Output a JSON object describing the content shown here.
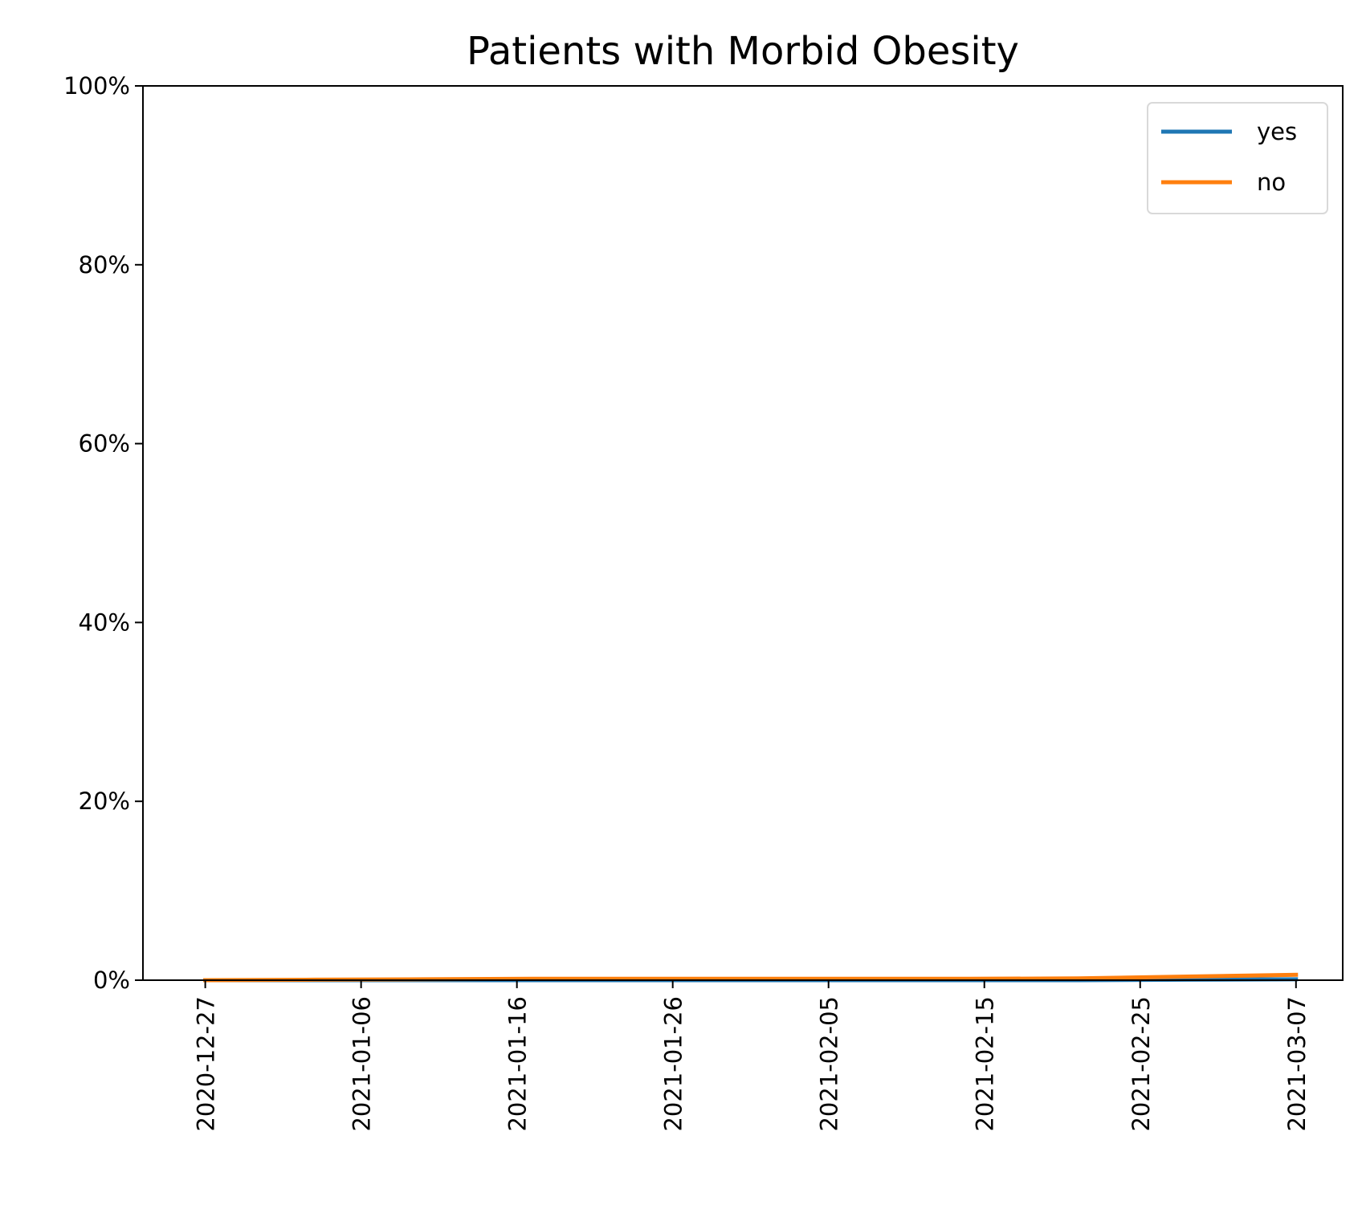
{
  "chart_data": {
    "type": "line",
    "title": "Patients with Morbid Obesity",
    "xlabel": "",
    "ylabel": "",
    "ylim": [
      0,
      100
    ],
    "x_ticks": [
      "2020-12-27",
      "2021-01-06",
      "2021-01-16",
      "2021-01-26",
      "2021-02-05",
      "2021-02-15",
      "2021-02-25",
      "2021-03-07"
    ],
    "y_ticks": [
      "0%",
      "20%",
      "40%",
      "60%",
      "80%",
      "100%"
    ],
    "y_tick_values": [
      0,
      20,
      40,
      60,
      80,
      100
    ],
    "x_range": [
      "2020-12-23",
      "2021-03-10"
    ],
    "grid": false,
    "legend_position": "top-right",
    "series": [
      {
        "name": "yes",
        "color": "#1f77b4",
        "points": [
          {
            "x": "2020-12-27",
            "y": 0.0
          },
          {
            "x": "2021-01-03",
            "y": 0.0
          },
          {
            "x": "2021-01-10",
            "y": 0.0
          },
          {
            "x": "2021-01-17",
            "y": 0.0
          },
          {
            "x": "2021-01-24",
            "y": 0.0
          },
          {
            "x": "2021-01-31",
            "y": 0.0
          },
          {
            "x": "2021-02-07",
            "y": 0.0
          },
          {
            "x": "2021-02-14",
            "y": 0.0
          },
          {
            "x": "2021-02-21",
            "y": 0.0
          },
          {
            "x": "2021-02-28",
            "y": 0.05
          },
          {
            "x": "2021-03-07",
            "y": 0.1
          }
        ]
      },
      {
        "name": "no",
        "color": "#ff7f0e",
        "points": [
          {
            "x": "2020-12-27",
            "y": 0.0
          },
          {
            "x": "2021-01-03",
            "y": 0.05
          },
          {
            "x": "2021-01-10",
            "y": 0.1
          },
          {
            "x": "2021-01-17",
            "y": 0.15
          },
          {
            "x": "2021-01-24",
            "y": 0.15
          },
          {
            "x": "2021-01-31",
            "y": 0.15
          },
          {
            "x": "2021-02-07",
            "y": 0.15
          },
          {
            "x": "2021-02-14",
            "y": 0.15
          },
          {
            "x": "2021-02-21",
            "y": 0.2
          },
          {
            "x": "2021-02-28",
            "y": 0.4
          },
          {
            "x": "2021-03-07",
            "y": 0.6
          }
        ]
      }
    ]
  }
}
